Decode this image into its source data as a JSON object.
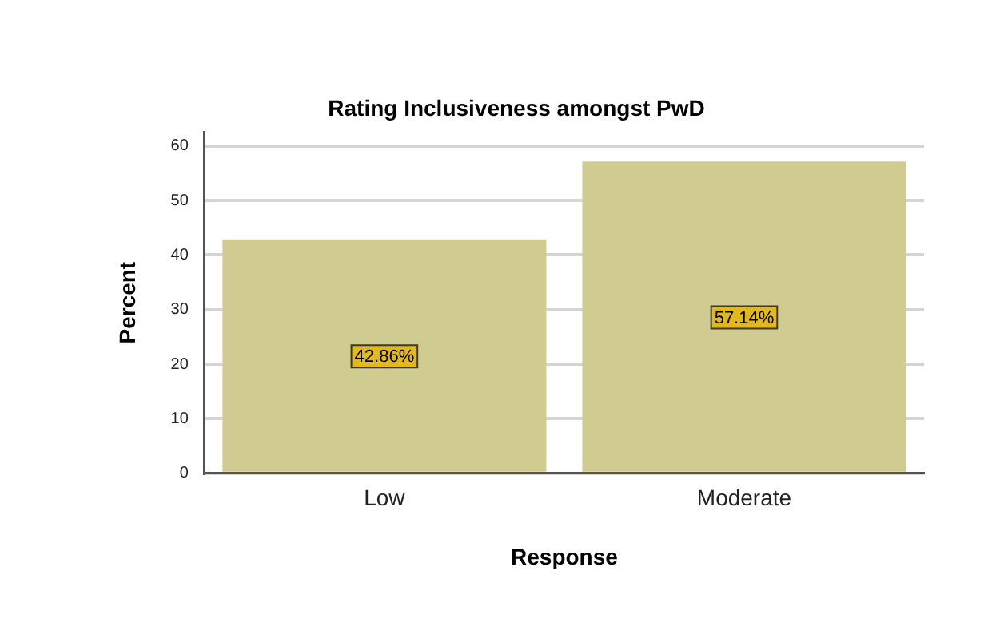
{
  "chart_data": {
    "type": "bar",
    "title": "Rating Inclusiveness amongst PwD",
    "xlabel": "Response",
    "ylabel": "Percent",
    "categories": [
      "Low",
      "Moderate"
    ],
    "values": [
      42.86,
      57.14
    ],
    "value_labels": [
      "42.86%",
      "57.14%"
    ],
    "color": "#d0cb91",
    "ylim": [
      0,
      62.5
    ],
    "yticks": [
      0,
      10,
      20,
      30,
      40,
      50,
      60
    ],
    "grid": "y",
    "legend": false
  }
}
